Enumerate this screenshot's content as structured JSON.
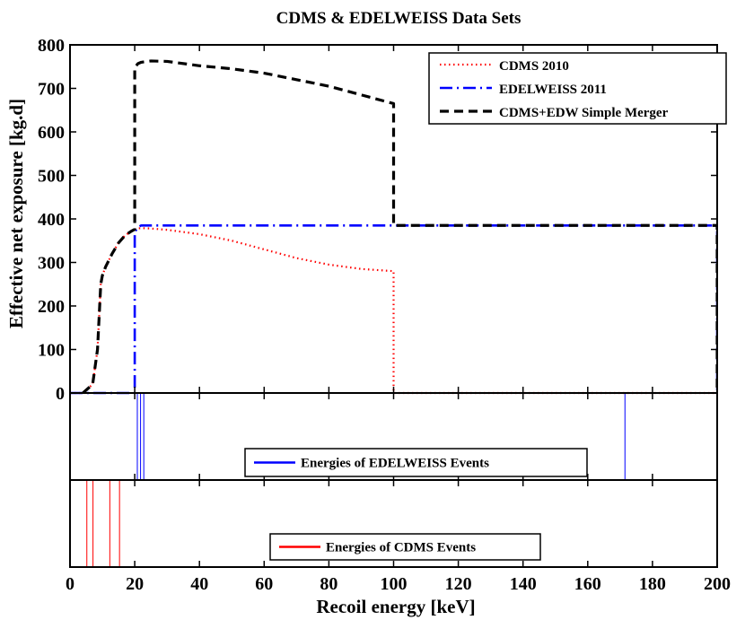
{
  "chart_data": {
    "type": "line",
    "title": "CDMS & EDELWEISS Data Sets",
    "xlabel": "Recoil energy [keV]",
    "ylabel": "Effective net exposure [kg.d]",
    "xlim": [
      0,
      200
    ],
    "ylim": [
      0,
      800
    ],
    "xticks": [
      0,
      20,
      40,
      60,
      80,
      100,
      120,
      140,
      160,
      180,
      200
    ],
    "yticks": [
      0,
      100,
      200,
      300,
      400,
      500,
      600,
      700,
      800
    ],
    "grid": false,
    "legend_position": "top-right",
    "series": [
      {
        "name": "CDMS 2010",
        "color": "#ff0000",
        "style": "dotted",
        "x": [
          0,
          4,
          7,
          8.5,
          9.5,
          10,
          11,
          13,
          15,
          17,
          19,
          20,
          21,
          22,
          25,
          30,
          40,
          50,
          60,
          70,
          80,
          90,
          100,
          100,
          100.01,
          200
        ],
        "y": [
          0,
          0,
          20,
          100,
          250,
          270,
          290,
          320,
          345,
          362,
          372,
          376,
          378,
          379,
          378,
          375,
          365,
          350,
          330,
          310,
          295,
          285,
          280,
          0,
          0,
          0
        ]
      },
      {
        "name": "EDELWEISS 2011",
        "color": "#0000ff",
        "style": "dashdot",
        "x": [
          0,
          20,
          20,
          21,
          22,
          100,
          200,
          200,
          200.01
        ],
        "y": [
          0,
          0,
          370,
          381,
          385,
          385,
          385,
          0,
          0
        ]
      },
      {
        "name": "CDMS+EDW Simple Merger",
        "color": "#000000",
        "style": "dashed",
        "x": [
          4,
          7,
          8.5,
          9.5,
          10,
          11,
          13,
          15,
          17,
          19,
          20,
          20,
          21,
          22,
          25,
          30,
          40,
          50,
          60,
          70,
          80,
          90,
          100,
          100,
          200,
          200
        ],
        "y": [
          0,
          20,
          100,
          250,
          270,
          290,
          320,
          345,
          362,
          372,
          376,
          748,
          757,
          760,
          763,
          762,
          752,
          745,
          735,
          720,
          705,
          685,
          665,
          385,
          385,
          0
        ]
      }
    ],
    "event_panels": [
      {
        "name": "Energies of EDELWEISS Events",
        "color": "#0000ff",
        "energies": [
          20.8,
          21.8,
          22.8,
          171.5
        ]
      },
      {
        "name": "Energies of CDMS Events",
        "color": "#ff0000",
        "energies": [
          5.2,
          7.1,
          12.3,
          15.3
        ]
      }
    ]
  }
}
